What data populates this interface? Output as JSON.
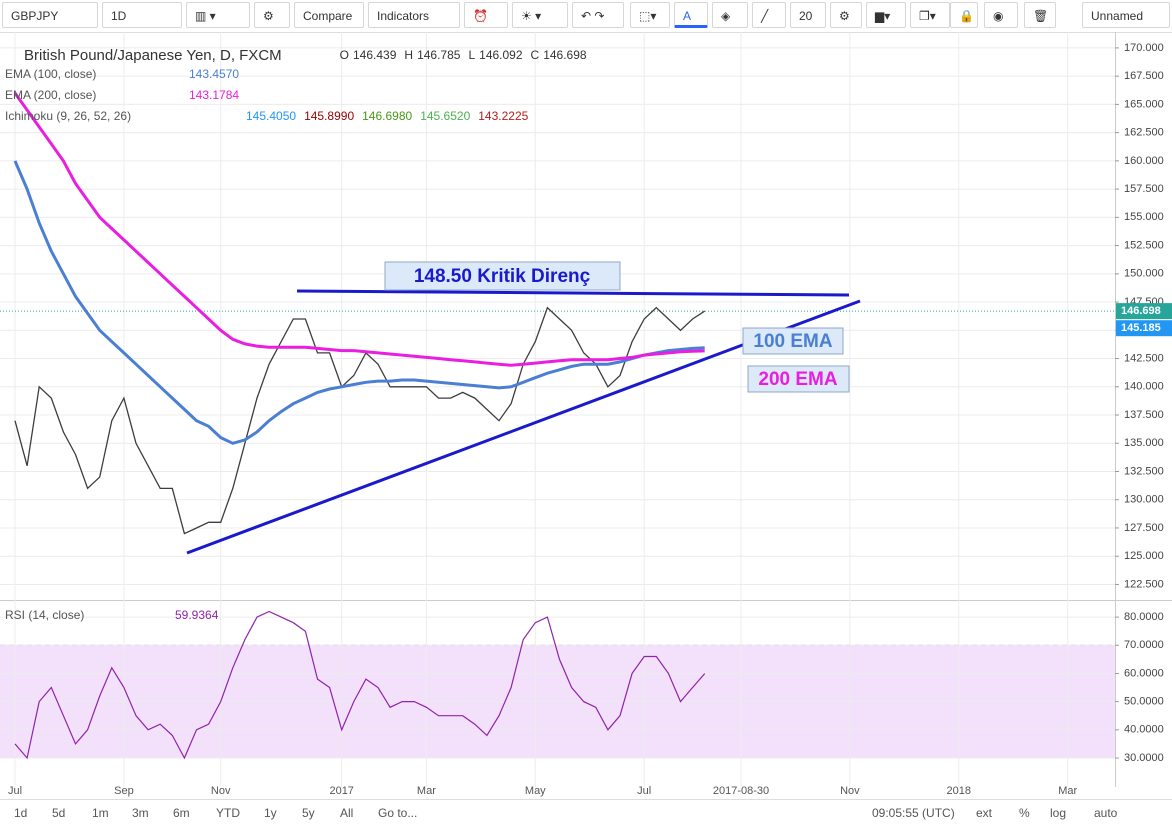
{
  "toolbar": {
    "symbol": "GBPJPY",
    "interval": "1D",
    "compare": "Compare",
    "indicators": "Indicators",
    "font_size": "20",
    "layout": "Unnamed"
  },
  "bottom_bar": {
    "ranges": [
      "1d",
      "5d",
      "1m",
      "3m",
      "6m",
      "YTD",
      "1y",
      "5y",
      "All"
    ],
    "goto": "Go to...",
    "clock": "09:05:55 (UTC)",
    "options": [
      "ext",
      "%",
      "log",
      "auto"
    ]
  },
  "chart_data": [
    {
      "type": "line",
      "title": "British Pound/Japanese Yen, D, FXCM",
      "ohlc": [
        {
          "label": "O",
          "value": "146.439"
        },
        {
          "label": "H",
          "value": "146.785"
        },
        {
          "label": "L",
          "value": "146.092"
        },
        {
          "label": "C",
          "value": "146.698"
        }
      ],
      "ichimoku": {
        "name": "Ichimoku (9, 26, 52, 26)",
        "values": [
          "145.4050",
          "145.8990",
          "146.6980",
          "145.6520",
          "143.2225"
        ],
        "colors": [
          "#2196f3",
          "#990000",
          "#459915",
          "#4caf50",
          "#b71c1c"
        ]
      },
      "annotations": [
        "148.50 Kritik Direnç",
        "100 EMA",
        "200 EMA"
      ],
      "price_tags": [
        {
          "value": 146.698,
          "label": "146.698",
          "color": "#26a69a"
        },
        {
          "value": 145.185,
          "label": "145.185",
          "color": "#2196f3"
        }
      ],
      "categories": [
        "Jul",
        null,
        null,
        null,
        null,
        null,
        null,
        null,
        null,
        "Sep",
        null,
        null,
        null,
        null,
        null,
        null,
        null,
        "Nov",
        null,
        null,
        null,
        null,
        null,
        null,
        null,
        null,
        null,
        "2017",
        null,
        null,
        null,
        null,
        null,
        null,
        "Mar",
        null,
        null,
        null,
        null,
        null,
        null,
        null,
        null,
        "May",
        null,
        null,
        null,
        null,
        null,
        null,
        null,
        null,
        "Jul",
        null,
        null,
        null,
        null,
        null,
        null,
        null,
        "2017-08-30",
        null,
        null,
        null,
        null,
        null,
        null,
        null,
        null,
        "Nov",
        null,
        null,
        null,
        null,
        null,
        null,
        null,
        null,
        "2018",
        null,
        null,
        null,
        null,
        null,
        null,
        null,
        null,
        "Mar",
        null,
        null,
        null,
        null
      ],
      "series": [
        {
          "color": "#3d3d3d",
          "values": [
            137,
            133,
            140,
            139,
            136,
            134,
            131,
            132,
            137,
            139,
            135,
            133,
            131,
            131,
            127,
            127.5,
            128,
            128,
            131,
            135,
            139,
            142,
            144,
            146,
            146,
            143,
            143,
            140,
            141,
            143,
            142,
            140,
            140,
            140,
            140,
            139,
            139,
            139.5,
            139,
            138,
            137,
            138.5,
            142,
            144,
            147,
            146,
            145,
            143,
            142,
            140,
            141,
            144,
            146,
            147,
            146,
            145,
            146,
            146.698,
            null,
            null,
            null,
            null,
            null,
            null,
            null,
            null,
            null,
            null,
            null,
            null,
            null,
            null,
            null,
            null,
            null,
            null,
            null,
            null,
            null,
            null,
            null,
            null,
            null,
            null,
            null,
            null,
            null,
            null,
            null,
            null,
            null,
            null
          ]
        },
        {
          "name": "EMA (100, close)",
          "last_label": "143.4570",
          "color": "#4a7fd4",
          "values": [
            160,
            157.5,
            154.5,
            152,
            150,
            148,
            146.5,
            145,
            144,
            143,
            142,
            141,
            140,
            139,
            138,
            137,
            136.5,
            135.5,
            135,
            135.3,
            136,
            137,
            137.8,
            138.5,
            139,
            139.5,
            139.8,
            140,
            140.2,
            140.4,
            140.5,
            140.5,
            140.6,
            140.6,
            140.5,
            140.4,
            140.3,
            140.2,
            140.1,
            140,
            139.9,
            140,
            140.4,
            140.8,
            141.2,
            141.5,
            141.8,
            142,
            142,
            142,
            142.2,
            142.5,
            142.8,
            143,
            143.2,
            143.3,
            143.4,
            143.457,
            null,
            null,
            null,
            null,
            null,
            null,
            null,
            null,
            null,
            null,
            null,
            null,
            null,
            null,
            null,
            null,
            null,
            null,
            null,
            null,
            null,
            null,
            null,
            null,
            null,
            null,
            null,
            null,
            null,
            null,
            null,
            null,
            null,
            null
          ]
        },
        {
          "name": "EMA (200, close)",
          "last_label": "143.1784",
          "color": "#e91ee0",
          "values": [
            166,
            164.5,
            163,
            161.5,
            160,
            158,
            156.5,
            155,
            154,
            153,
            152,
            151,
            150,
            149,
            148,
            147,
            146,
            145,
            144.2,
            143.8,
            143.6,
            143.5,
            143.5,
            143.5,
            143.5,
            143.4,
            143.3,
            143.2,
            143.2,
            143.1,
            143,
            142.9,
            142.8,
            142.7,
            142.6,
            142.5,
            142.4,
            142.3,
            142.2,
            142.1,
            142,
            141.9,
            142,
            142.1,
            142.2,
            142.3,
            142.4,
            142.4,
            142.4,
            142.4,
            142.5,
            142.6,
            142.8,
            142.9,
            143,
            143.1,
            143.15,
            143.178,
            null,
            null,
            null,
            null,
            null,
            null,
            null,
            null,
            null,
            null,
            null,
            null,
            null,
            null,
            null,
            null,
            null,
            null,
            null,
            null,
            null,
            null,
            null,
            null,
            null,
            null,
            null,
            null,
            null,
            null,
            null,
            null,
            null,
            null
          ]
        }
      ],
      "ylim": [
        121.3,
        170.7
      ],
      "yticks": [
        {
          "value": 122.5,
          "label": "122.500"
        },
        {
          "value": 125,
          "label": "125.000"
        },
        {
          "value": 127.5,
          "label": "127.500"
        },
        {
          "value": 130,
          "label": "130.000"
        },
        {
          "value": 132.5,
          "label": "132.500"
        },
        {
          "value": 135,
          "label": "135.000"
        },
        {
          "value": 137.5,
          "label": "137.500"
        },
        {
          "value": 140,
          "label": "140.000"
        },
        {
          "value": 142.5,
          "label": "142.500"
        },
        {
          "value": 145,
          "label": "145.000"
        },
        {
          "value": 147.5,
          "label": "147.500"
        },
        {
          "value": 150,
          "label": "150.000"
        },
        {
          "value": 152.5,
          "label": "152.500"
        },
        {
          "value": 155,
          "label": "155.000"
        },
        {
          "value": 157.5,
          "label": "157.500"
        },
        {
          "value": 160,
          "label": "160.000"
        },
        {
          "value": 162.5,
          "label": "162.500"
        },
        {
          "value": 165,
          "label": "165.000"
        },
        {
          "value": 167.5,
          "label": "167.500"
        },
        {
          "value": 170,
          "label": "170.000"
        }
      ],
      "grid": true
    },
    {
      "type": "line",
      "title": "RSI (14, close)",
      "last_label": "59.9364",
      "color": "#8e24aa",
      "values": [
        35,
        30,
        50,
        55,
        45,
        35,
        40,
        52,
        62,
        55,
        45,
        40,
        42,
        38,
        30,
        40,
        42,
        50,
        62,
        72,
        80,
        82,
        80,
        78,
        75,
        58,
        55,
        40,
        50,
        58,
        55,
        48,
        50,
        50,
        48,
        45,
        45,
        45,
        42,
        38,
        45,
        55,
        72,
        78,
        80,
        65,
        55,
        50,
        48,
        40,
        45,
        60,
        66,
        66,
        60,
        50,
        55,
        59.9364,
        null,
        null,
        null,
        null,
        null,
        null,
        null,
        null,
        null,
        null,
        null,
        null,
        null,
        null,
        null,
        null,
        null,
        null,
        null,
        null,
        null,
        null,
        null,
        null,
        null,
        null,
        null,
        null,
        null,
        null,
        null,
        null,
        null,
        null
      ],
      "band": [
        30,
        70
      ],
      "band_color": "#f3e0fb",
      "ylim": [
        19.7,
        85
      ],
      "yticks": [
        {
          "value": 30,
          "label": "30.0000"
        },
        {
          "value": 40,
          "label": "40.0000"
        },
        {
          "value": 50,
          "label": "50.0000"
        },
        {
          "value": 60,
          "label": "60.0000"
        },
        {
          "value": 70,
          "label": "70.0000"
        },
        {
          "value": 80,
          "label": "80.0000"
        }
      ],
      "grid": true
    }
  ]
}
